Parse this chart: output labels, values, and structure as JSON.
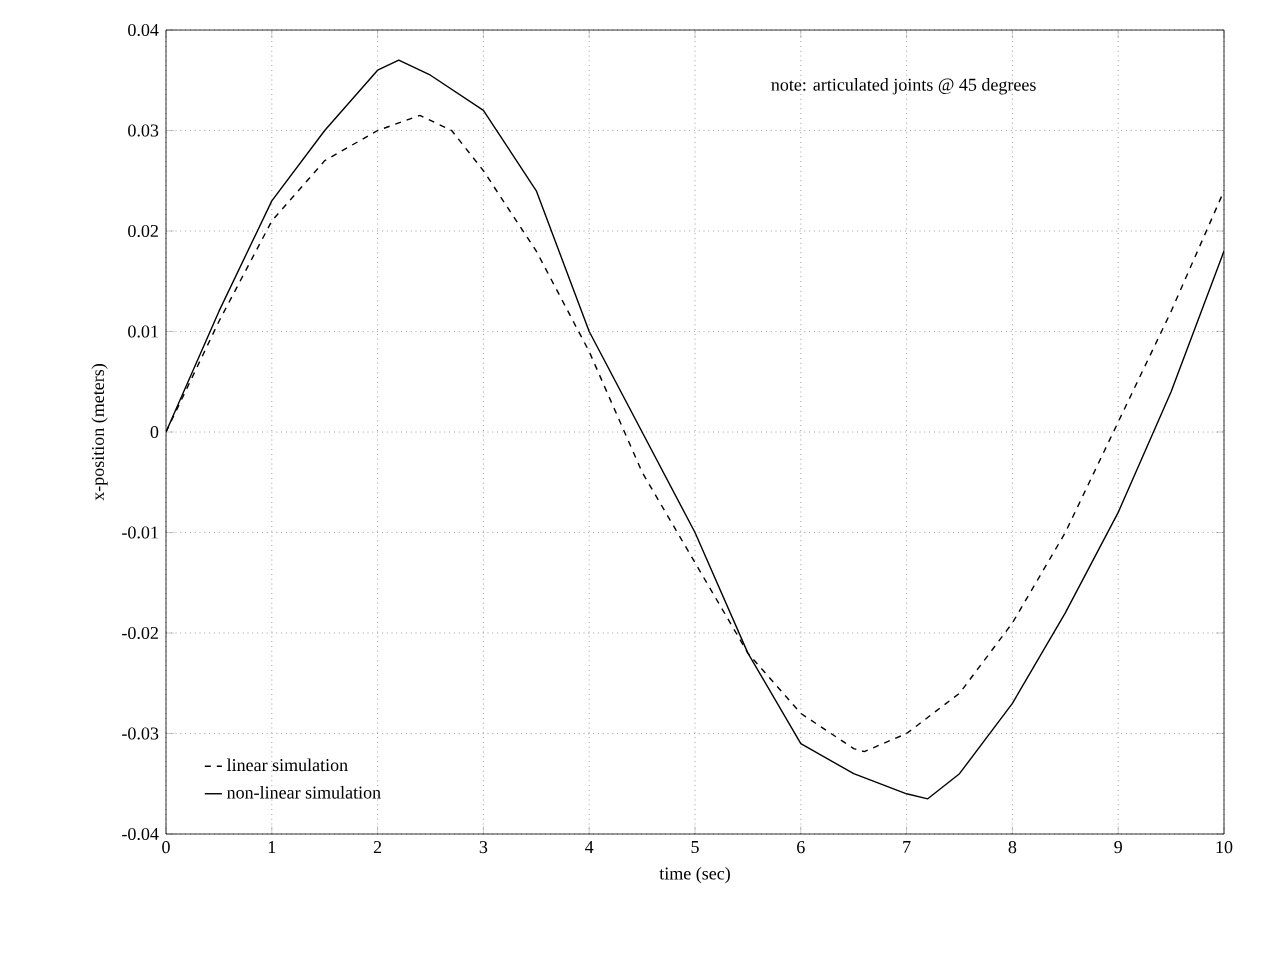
{
  "chart_data": {
    "type": "line",
    "xlabel": "time (sec)",
    "ylabel": "x-position (meters)",
    "annotations": [
      "note: articulated joints @ 45 degrees"
    ],
    "xlim": [
      0,
      10
    ],
    "ylim": [
      -0.04,
      0.04
    ],
    "xticks": [
      0,
      1,
      2,
      3,
      4,
      5,
      6,
      7,
      8,
      9,
      10
    ],
    "yticks": [
      -0.04,
      -0.03,
      -0.02,
      -0.01,
      0,
      0.01,
      0.02,
      0.03,
      0.04
    ],
    "grid": true,
    "legend": "bottom left",
    "series": [
      {
        "name": "linear simulation",
        "color": "#000000",
        "line_style": "dashed",
        "x": [
          0,
          0.5,
          1,
          1.5,
          2,
          2.4,
          2.7,
          3,
          3.5,
          4,
          4.5,
          5,
          5.5,
          6,
          6.5,
          6.6,
          7,
          7.5,
          8,
          8.5,
          9,
          9.5,
          10
        ],
        "values": [
          0,
          0.011,
          0.021,
          0.027,
          0.03,
          0.0315,
          0.03,
          0.026,
          0.018,
          0.008,
          -0.004,
          -0.013,
          -0.022,
          -0.028,
          -0.0315,
          -0.0318,
          -0.03,
          -0.026,
          -0.019,
          -0.01,
          0.001,
          0.012,
          0.024
        ]
      },
      {
        "name": "non-linear simulation",
        "color": "#000000",
        "line_style": "solid",
        "x": [
          0,
          0.5,
          1,
          1.5,
          2,
          2.2,
          2.5,
          3,
          3.5,
          4,
          4.5,
          5,
          5.5,
          6,
          6.5,
          7,
          7.2,
          7.5,
          8,
          8.5,
          9,
          9.5,
          10
        ],
        "values": [
          0,
          0.012,
          0.023,
          0.03,
          0.036,
          0.037,
          0.0355,
          0.032,
          0.024,
          0.01,
          0.0,
          -0.01,
          -0.022,
          -0.031,
          -0.034,
          -0.036,
          -0.0365,
          -0.034,
          -0.027,
          -0.018,
          -0.008,
          0.004,
          0.018
        ]
      }
    ]
  }
}
